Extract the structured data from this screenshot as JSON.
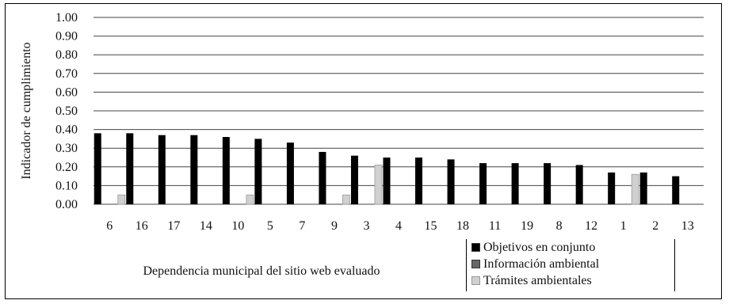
{
  "chart_data": {
    "type": "bar",
    "ylabel": "Indicador de cumplimiento",
    "xlabel": "Dependencia municipal del sitio web evaluado",
    "ylim": [
      0,
      1
    ],
    "yticks": [
      "0.00",
      "0.10",
      "0.20",
      "0.30",
      "0.40",
      "0.50",
      "0.60",
      "0.70",
      "0.80",
      "0.90",
      "1.00"
    ],
    "grid": true,
    "legend_position": "bottom-right",
    "categories": [
      "6",
      "16",
      "17",
      "14",
      "10",
      "5",
      "7",
      "9",
      "3",
      "4",
      "15",
      "18",
      "11",
      "19",
      "8",
      "12",
      "1",
      "2",
      "13"
    ],
    "series": [
      {
        "name": "Objetivos en conjunto",
        "color": "#000000",
        "values": [
          0.38,
          0.38,
          0.37,
          0.37,
          0.36,
          0.35,
          0.33,
          0.28,
          0.26,
          0.25,
          0.25,
          0.24,
          0.22,
          0.22,
          0.22,
          0.21,
          0.17,
          0.17,
          0.15
        ]
      },
      {
        "name": "Información ambiental",
        "color": "#666666",
        "values": [
          0,
          0,
          0,
          0,
          0,
          0,
          0,
          0,
          0,
          0,
          0,
          0,
          0,
          0,
          0,
          0,
          0,
          0,
          0
        ]
      },
      {
        "name": "Trámites ambientales",
        "color": "#d0d0d0",
        "values": [
          0.05,
          0,
          0,
          0,
          0.05,
          0,
          0,
          0.05,
          0.21,
          0,
          0,
          0,
          0,
          0,
          0,
          0,
          0.16,
          0,
          0
        ]
      }
    ]
  }
}
